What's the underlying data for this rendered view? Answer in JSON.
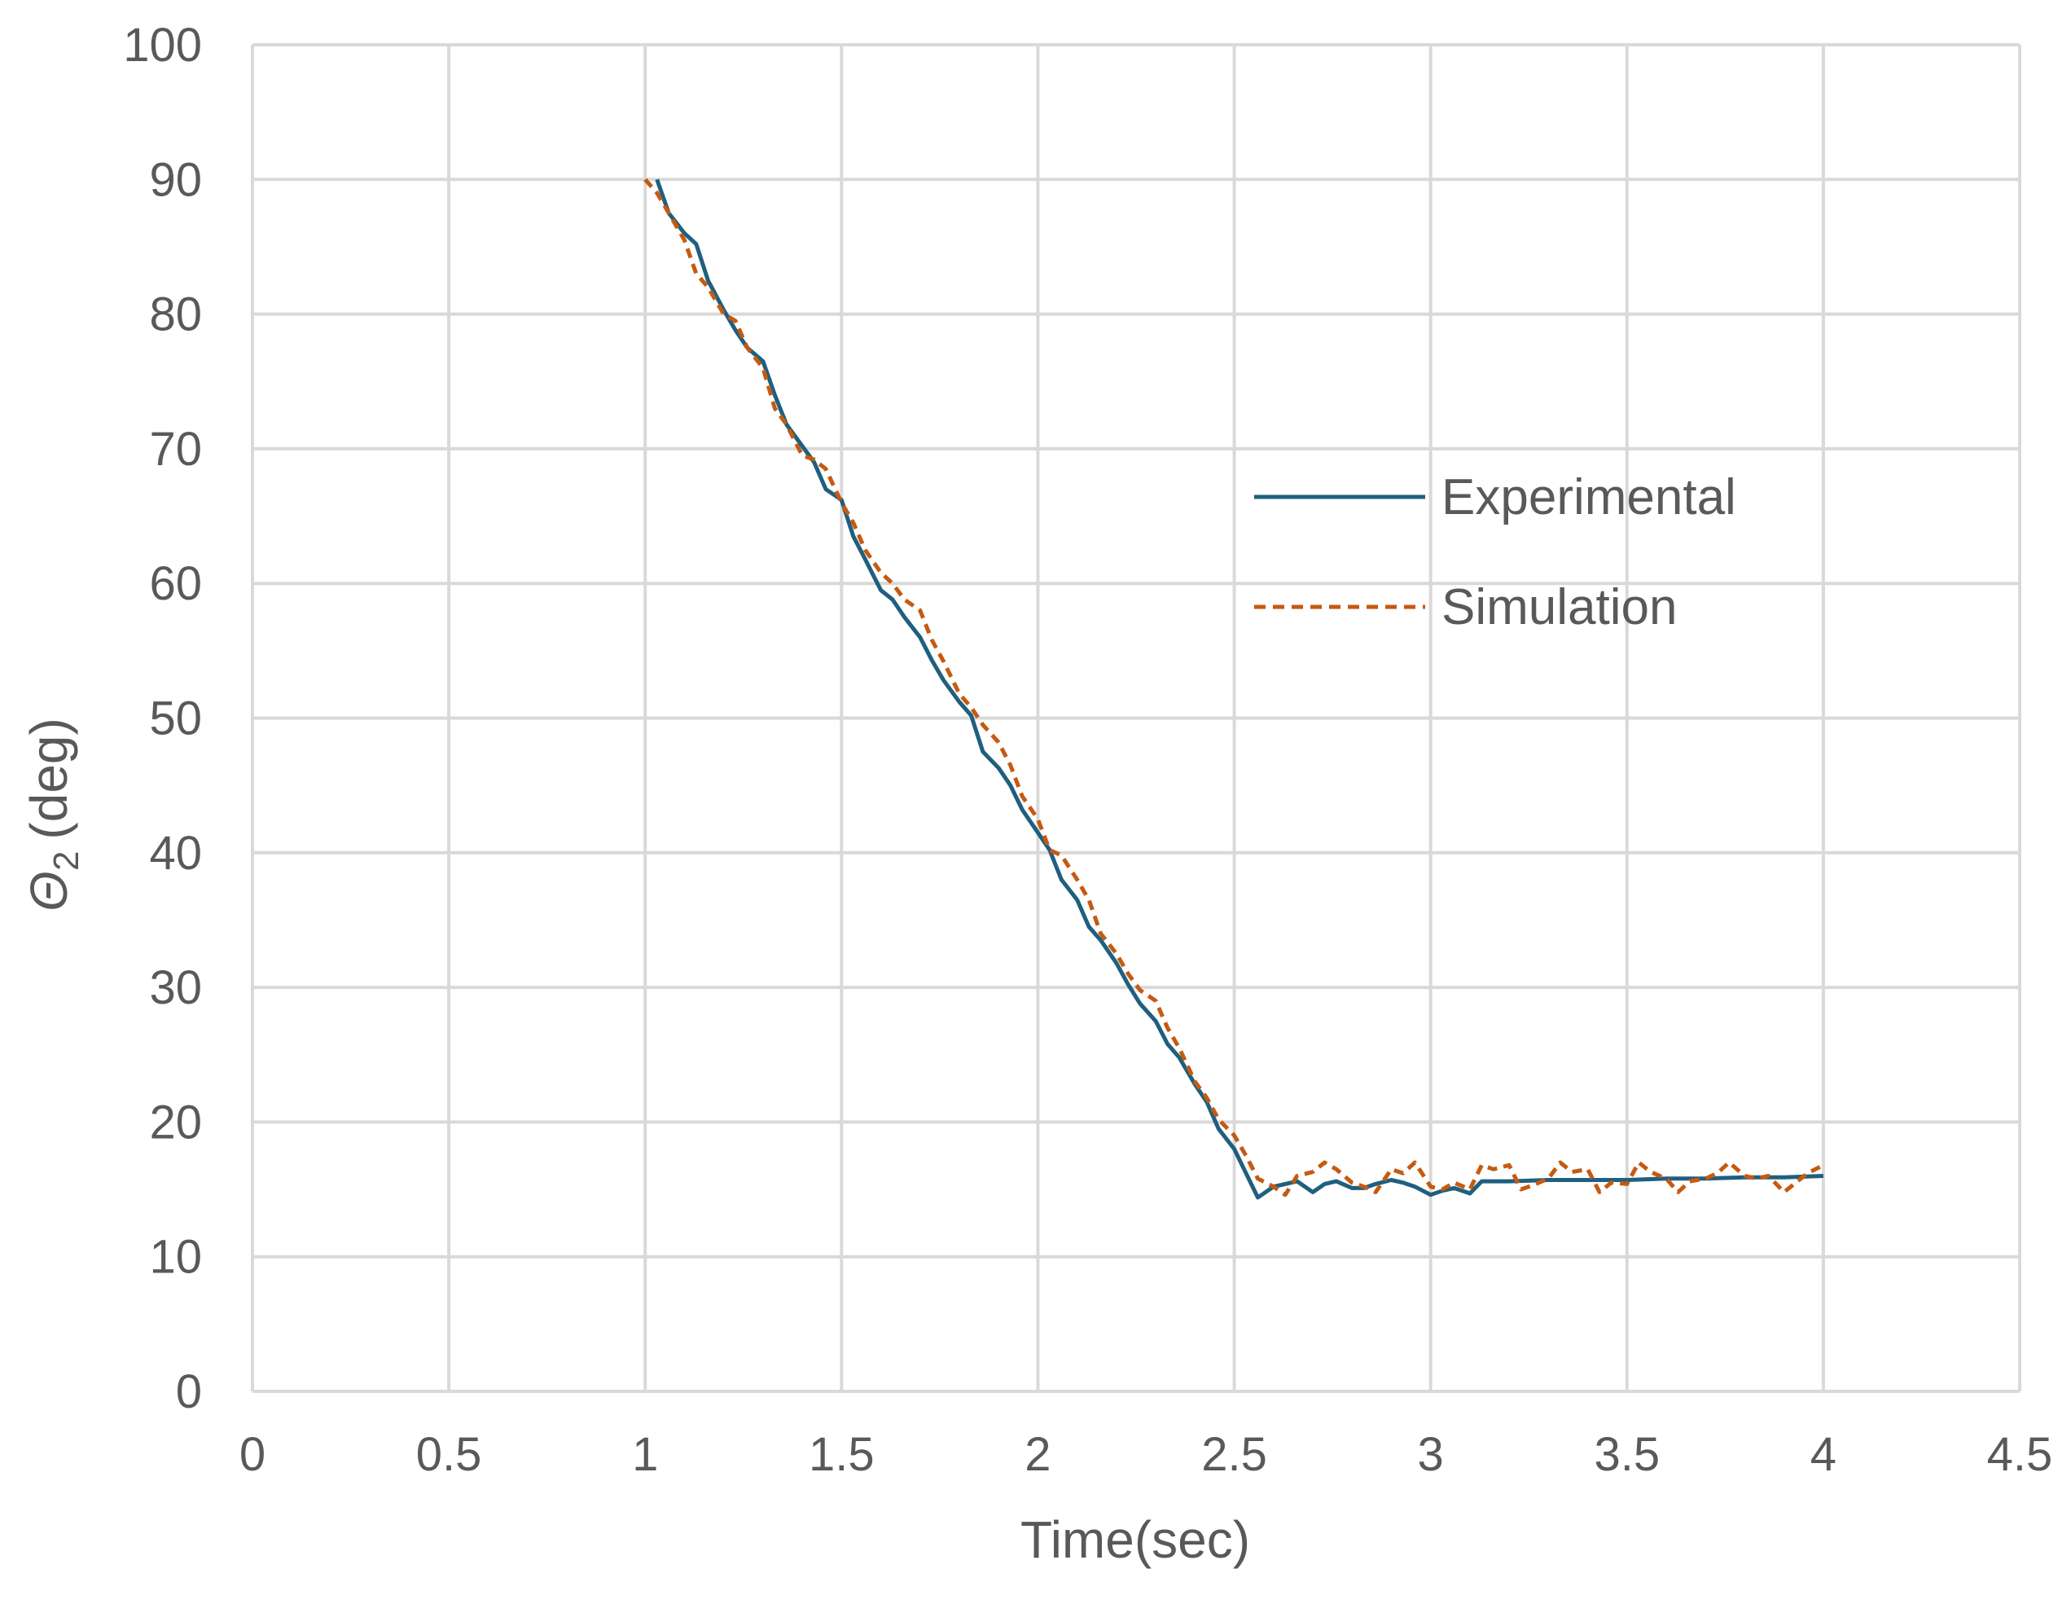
{
  "chart_data": {
    "type": "line",
    "xlabel": "Time(sec)",
    "ylabel": {
      "symbol": "Θ",
      "subscript": "2",
      "unit": "(deg)"
    },
    "xlim": [
      0,
      4.5
    ],
    "ylim": [
      0,
      100
    ],
    "x_ticks": [
      0,
      0.5,
      1,
      1.5,
      2,
      2.5,
      3,
      3.5,
      4,
      4.5
    ],
    "x_tick_labels": [
      "0",
      "0.5",
      "1",
      "1.5",
      "2",
      "2.5",
      "3",
      "3.5",
      "4",
      "4.5"
    ],
    "y_ticks": [
      0,
      10,
      20,
      30,
      40,
      50,
      60,
      70,
      80,
      90,
      100
    ],
    "y_tick_labels": [
      "0",
      "10",
      "20",
      "30",
      "40",
      "50",
      "60",
      "70",
      "80",
      "90",
      "100"
    ],
    "grid": true,
    "legend_position": "right-middle",
    "series": [
      {
        "name": "Experimental",
        "color": "#1f5f7f",
        "dash": "solid",
        "points": [
          [
            1.03,
            90
          ],
          [
            1.06,
            87.5
          ],
          [
            1.1,
            86
          ],
          [
            1.13,
            85.2
          ],
          [
            1.16,
            82.5
          ],
          [
            1.2,
            80.3
          ],
          [
            1.23,
            78.8
          ],
          [
            1.26,
            77.5
          ],
          [
            1.3,
            76.5
          ],
          [
            1.33,
            74
          ],
          [
            1.36,
            71.8
          ],
          [
            1.4,
            70.2
          ],
          [
            1.43,
            69
          ],
          [
            1.46,
            67
          ],
          [
            1.5,
            66.2
          ],
          [
            1.53,
            63.5
          ],
          [
            1.56,
            61.8
          ],
          [
            1.6,
            59.5
          ],
          [
            1.63,
            58.8
          ],
          [
            1.66,
            57.5
          ],
          [
            1.7,
            56
          ],
          [
            1.73,
            54.3
          ],
          [
            1.76,
            52.8
          ],
          [
            1.8,
            51.2
          ],
          [
            1.83,
            50.2
          ],
          [
            1.86,
            47.5
          ],
          [
            1.9,
            46.3
          ],
          [
            1.93,
            45
          ],
          [
            1.96,
            43.2
          ],
          [
            2.0,
            41.5
          ],
          [
            2.03,
            40.2
          ],
          [
            2.06,
            38
          ],
          [
            2.1,
            36.5
          ],
          [
            2.13,
            34.5
          ],
          [
            2.16,
            33.5
          ],
          [
            2.2,
            31.8
          ],
          [
            2.23,
            30.2
          ],
          [
            2.26,
            28.8
          ],
          [
            2.3,
            27.5
          ],
          [
            2.33,
            25.8
          ],
          [
            2.36,
            24.8
          ],
          [
            2.4,
            22.8
          ],
          [
            2.43,
            21.5
          ],
          [
            2.46,
            19.5
          ],
          [
            2.5,
            18
          ],
          [
            2.53,
            16.2
          ],
          [
            2.56,
            14.4
          ],
          [
            2.6,
            15.2
          ],
          [
            2.63,
            15.4
          ],
          [
            2.66,
            15.6
          ],
          [
            2.7,
            14.8
          ],
          [
            2.73,
            15.4
          ],
          [
            2.76,
            15.6
          ],
          [
            2.8,
            15.1
          ],
          [
            2.83,
            15.1
          ],
          [
            2.86,
            15.4
          ],
          [
            2.9,
            15.7
          ],
          [
            2.93,
            15.5
          ],
          [
            2.96,
            15.2
          ],
          [
            3.0,
            14.6
          ],
          [
            3.03,
            14.9
          ],
          [
            3.06,
            15.1
          ],
          [
            3.1,
            14.7
          ],
          [
            3.13,
            15.6
          ],
          [
            3.2,
            15.6
          ],
          [
            3.3,
            15.7
          ],
          [
            3.4,
            15.7
          ],
          [
            3.5,
            15.7
          ],
          [
            3.6,
            15.8
          ],
          [
            3.7,
            15.8
          ],
          [
            3.8,
            15.9
          ],
          [
            3.9,
            15.9
          ],
          [
            4.0,
            16
          ]
        ]
      },
      {
        "name": "Simulation",
        "color": "#c55a11",
        "dash": "dashed",
        "points": [
          [
            1.0,
            90
          ],
          [
            1.03,
            89
          ],
          [
            1.06,
            87.5
          ],
          [
            1.1,
            85.5
          ],
          [
            1.13,
            83
          ],
          [
            1.16,
            82
          ],
          [
            1.2,
            80
          ],
          [
            1.23,
            79.5
          ],
          [
            1.26,
            77.5
          ],
          [
            1.3,
            76
          ],
          [
            1.33,
            73
          ],
          [
            1.36,
            71.8
          ],
          [
            1.4,
            69.5
          ],
          [
            1.43,
            69.2
          ],
          [
            1.46,
            68.5
          ],
          [
            1.5,
            66
          ],
          [
            1.53,
            64.5
          ],
          [
            1.56,
            62.5
          ],
          [
            1.6,
            60.8
          ],
          [
            1.63,
            60
          ],
          [
            1.66,
            58.8
          ],
          [
            1.7,
            58
          ],
          [
            1.73,
            55.8
          ],
          [
            1.76,
            54.2
          ],
          [
            1.8,
            51.8
          ],
          [
            1.83,
            50.8
          ],
          [
            1.86,
            49.5
          ],
          [
            1.9,
            48.2
          ],
          [
            1.93,
            46.5
          ],
          [
            1.96,
            44.2
          ],
          [
            2.0,
            42.5
          ],
          [
            2.03,
            40.2
          ],
          [
            2.06,
            39.8
          ],
          [
            2.1,
            38
          ],
          [
            2.13,
            36.5
          ],
          [
            2.16,
            34
          ],
          [
            2.2,
            32.5
          ],
          [
            2.23,
            31
          ],
          [
            2.26,
            29.8
          ],
          [
            2.3,
            29
          ],
          [
            2.33,
            27
          ],
          [
            2.36,
            25.5
          ],
          [
            2.4,
            23
          ],
          [
            2.43,
            21.8
          ],
          [
            2.46,
            20.2
          ],
          [
            2.5,
            19
          ],
          [
            2.53,
            17.5
          ],
          [
            2.56,
            15.8
          ],
          [
            2.6,
            15.2
          ],
          [
            2.63,
            14.6
          ],
          [
            2.66,
            16
          ],
          [
            2.7,
            16.3
          ],
          [
            2.73,
            17
          ],
          [
            2.76,
            16.5
          ],
          [
            2.8,
            15.5
          ],
          [
            2.83,
            15.2
          ],
          [
            2.86,
            14.8
          ],
          [
            2.9,
            16.5
          ],
          [
            2.93,
            16.2
          ],
          [
            2.96,
            17
          ],
          [
            3.0,
            15.2
          ],
          [
            3.03,
            15
          ],
          [
            3.06,
            15.5
          ],
          [
            3.1,
            15
          ],
          [
            3.13,
            16.8
          ],
          [
            3.16,
            16.5
          ],
          [
            3.2,
            16.8
          ],
          [
            3.23,
            15
          ],
          [
            3.26,
            15.3
          ],
          [
            3.3,
            15.8
          ],
          [
            3.33,
            17
          ],
          [
            3.36,
            16.3
          ],
          [
            3.4,
            16.5
          ],
          [
            3.43,
            14.8
          ],
          [
            3.46,
            15.5
          ],
          [
            3.5,
            15.4
          ],
          [
            3.53,
            17
          ],
          [
            3.56,
            16.3
          ],
          [
            3.6,
            15.8
          ],
          [
            3.63,
            14.8
          ],
          [
            3.66,
            15.6
          ],
          [
            3.7,
            15.8
          ],
          [
            3.73,
            16.2
          ],
          [
            3.76,
            17
          ],
          [
            3.8,
            16
          ],
          [
            3.83,
            15.8
          ],
          [
            3.86,
            16
          ],
          [
            3.9,
            14.8
          ],
          [
            3.93,
            15.5
          ],
          [
            3.96,
            16.2
          ],
          [
            4.0,
            16.8
          ]
        ]
      }
    ]
  }
}
